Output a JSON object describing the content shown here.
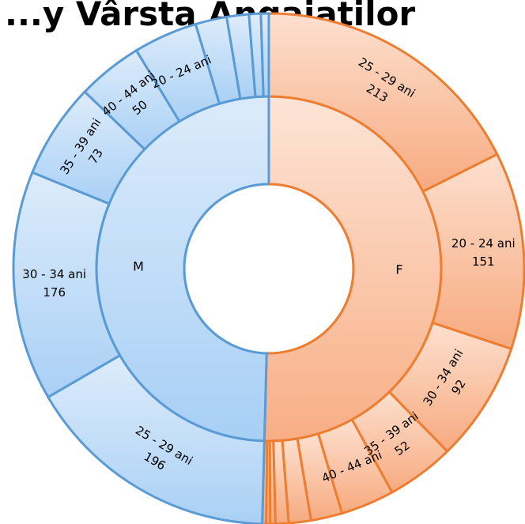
{
  "chart_data": {
    "type": "sunburst",
    "title": "...y Vârsta Angajaților",
    "colors": {
      "M": {
        "stroke": "#5b9bd5",
        "inner_top": "#dcebfb",
        "inner_bottom": "#a7cff5",
        "outer_top": "#ddecfb",
        "outer_bottom": "#a9d0f5"
      },
      "F": {
        "stroke": "#ed7d31",
        "inner_top": "#fde4d6",
        "inner_bottom": "#f8ae85",
        "outer_top": "#fde0cf",
        "outer_bottom": "#f7aa7f"
      }
    },
    "categories": [
      {
        "name": "F",
        "label": "F",
        "children": [
          {
            "name": "25 - 29 ani",
            "value": 213,
            "label": "25 - 29 ani",
            "value_label": "213"
          },
          {
            "name": "20 - 24 ani",
            "value": 151,
            "label": "20 - 24 ani",
            "value_label": "151"
          },
          {
            "name": "30 - 34 ani",
            "value": 92,
            "label": "30 - 34 ani",
            "value_label": "92"
          },
          {
            "name": "35 - 39 ani",
            "value": 52,
            "label": "35 - 39 ani",
            "value_label": "52"
          },
          {
            "name": "40 - 44 ani",
            "value": 41,
            "label": "40 - 44 ani",
            "value_label": ""
          },
          {
            "name": "f-small-1",
            "value": 24,
            "label": "",
            "value_label": ""
          },
          {
            "name": "f-small-2",
            "value": 17,
            "label": "",
            "value_label": ""
          },
          {
            "name": "f-small-3",
            "value": 10,
            "label": "",
            "value_label": ""
          },
          {
            "name": "f-small-4",
            "value": 4,
            "label": "",
            "value_label": ""
          },
          {
            "name": "f-small-5",
            "value": 3,
            "label": "",
            "value_label": ""
          },
          {
            "name": "f-small-6",
            "value": 3,
            "label": "",
            "value_label": ""
          }
        ]
      },
      {
        "name": "M",
        "label": "M",
        "children": [
          {
            "name": "25 - 29 ani",
            "value": 196,
            "label": "25 - 29 ani",
            "value_label": "196"
          },
          {
            "name": "30 - 34 ani",
            "value": 176,
            "label": "30 - 34 ani",
            "value_label": "176"
          },
          {
            "name": "35 - 39 ani",
            "value": 73,
            "label": "35 - 39 ani",
            "value_label": "73"
          },
          {
            "name": "40 - 44 ani",
            "value": 50,
            "label": "40 - 44 ani",
            "value_label": "50"
          },
          {
            "name": "20 - 24 ani",
            "value": 49,
            "label": "20 - 24 ani",
            "value_label": ""
          },
          {
            "name": "m-small-1",
            "value": 24,
            "label": "",
            "value_label": ""
          },
          {
            "name": "m-small-2",
            "value": 17,
            "label": "",
            "value_label": ""
          },
          {
            "name": "m-small-3",
            "value": 9,
            "label": "",
            "value_label": ""
          },
          {
            "name": "m-small-4",
            "value": 6,
            "label": "",
            "value_label": ""
          }
        ]
      }
    ]
  }
}
